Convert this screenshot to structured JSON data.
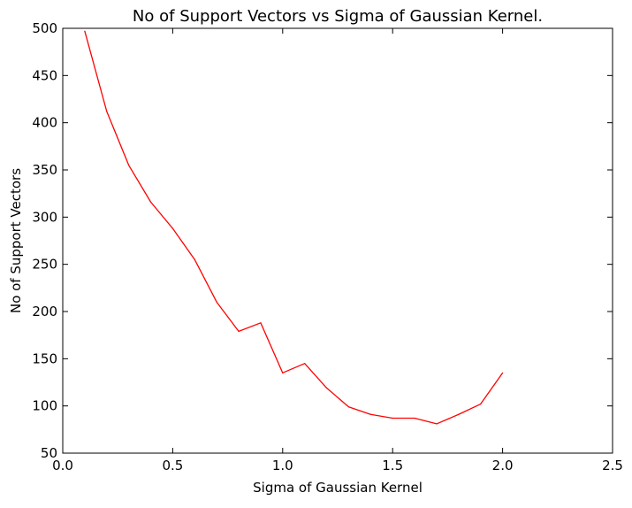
{
  "chart_data": {
    "type": "line",
    "title": "No of Support Vectors vs Sigma of Gaussian Kernel.",
    "xlabel": "Sigma of Gaussian Kernel",
    "ylabel": "No of Support Vectors",
    "xlim": [
      0.0,
      2.5
    ],
    "ylim": [
      50,
      500
    ],
    "xticks": [
      0.0,
      0.5,
      1.0,
      1.5,
      2.0,
      2.5
    ],
    "xtick_labels": [
      "0.0",
      "0.5",
      "1.0",
      "1.5",
      "2.0",
      "2.5"
    ],
    "yticks": [
      50,
      100,
      150,
      200,
      250,
      300,
      350,
      400,
      450,
      500
    ],
    "ytick_labels": [
      "50",
      "100",
      "150",
      "200",
      "250",
      "300",
      "350",
      "400",
      "450",
      "500"
    ],
    "grid": false,
    "series": [
      {
        "color": "#ff0000",
        "x": [
          0.1,
          0.2,
          0.3,
          0.4,
          0.5,
          0.6,
          0.7,
          0.8,
          0.9,
          1.0,
          1.1,
          1.2,
          1.3,
          1.4,
          1.5,
          1.6,
          1.7,
          1.8,
          1.9,
          2.0
        ],
        "y": [
          497,
          412,
          355,
          316,
          288,
          255,
          210,
          179,
          188,
          135,
          145,
          119,
          99,
          91,
          87,
          87,
          81,
          91,
          102,
          135
        ]
      }
    ]
  }
}
